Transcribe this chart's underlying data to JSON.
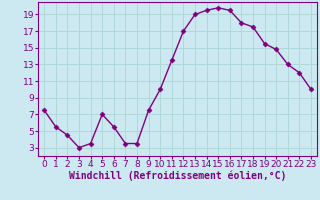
{
  "x": [
    0,
    1,
    2,
    3,
    4,
    5,
    6,
    7,
    8,
    9,
    10,
    11,
    12,
    13,
    14,
    15,
    16,
    17,
    18,
    19,
    20,
    21,
    22,
    23
  ],
  "y": [
    7.5,
    5.5,
    4.5,
    3.0,
    3.5,
    7.0,
    5.5,
    3.5,
    3.5,
    7.5,
    10.0,
    13.5,
    17.0,
    19.0,
    19.5,
    19.8,
    19.5,
    18.0,
    17.5,
    15.5,
    14.8,
    13.0,
    12.0,
    10.0
  ],
  "xlabel": "Windchill (Refroidissement éolien,°C)",
  "xlim": [
    -0.5,
    23.5
  ],
  "ylim": [
    2,
    20.5
  ],
  "yticks": [
    3,
    5,
    7,
    9,
    11,
    13,
    15,
    17,
    19
  ],
  "xticks": [
    0,
    1,
    2,
    3,
    4,
    5,
    6,
    7,
    8,
    9,
    10,
    11,
    12,
    13,
    14,
    15,
    16,
    17,
    18,
    19,
    20,
    21,
    22,
    23
  ],
  "line_color": "#800080",
  "marker": "D",
  "marker_size": 2.5,
  "bg_color": "#cce8f0",
  "grid_color": "#b0d8d8",
  "xlabel_fontsize": 7,
  "tick_fontsize": 6.5,
  "fig_bg": "#cce8f0",
  "spine_color": "#800080"
}
